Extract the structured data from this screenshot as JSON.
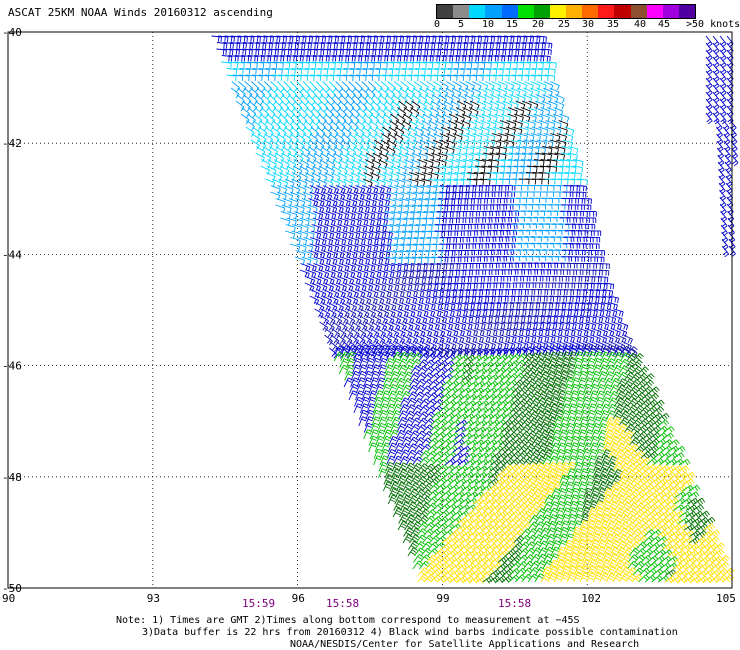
{
  "title": "ASCAT 25KM NOAA Winds 20160312 ascending",
  "legend": {
    "colors": [
      "#404040",
      "#8c8c8c",
      "#00d8ff",
      "#00a0ff",
      "#006cff",
      "#00e000",
      "#00a000",
      "#fff000",
      "#ffb000",
      "#ff6a00",
      "#ff1a1a",
      "#c00000",
      "#8c5030",
      "#ff00ff",
      "#a000e0",
      "#5000a0"
    ],
    "labels": [
      "0",
      "5",
      "10",
      "15",
      "20",
      "25",
      "30",
      "35",
      "40",
      "45",
      ">50 knots"
    ]
  },
  "axes": {
    "lat_ticks": [
      "-40",
      "-42",
      "-44",
      "-46",
      "-48",
      "-50"
    ],
    "lon_ticks": [
      "90",
      "93",
      "96",
      "99",
      "102",
      "105"
    ]
  },
  "times": [
    "15:59",
    "15:58",
    "15:58"
  ],
  "notes": [
    "Note: 1) Times are GMT 2)Times along bottom correspond to measurement at −45S",
    "3)Data buffer is 22 hrs from 20160312 4) Black wind barbs indicate possible contamination",
    "NOAA/NESDIS/Center for Satellite Applications and Research"
  ],
  "barb_colors": {
    "slow": "#00d8ff",
    "mid": "#00a0ff",
    "blue": "#0000d0",
    "navy": "#1010b0",
    "green": "#00c000",
    "dark_green": "#007000",
    "yellow": "#ffe000",
    "contaminated": "#000000"
  }
}
